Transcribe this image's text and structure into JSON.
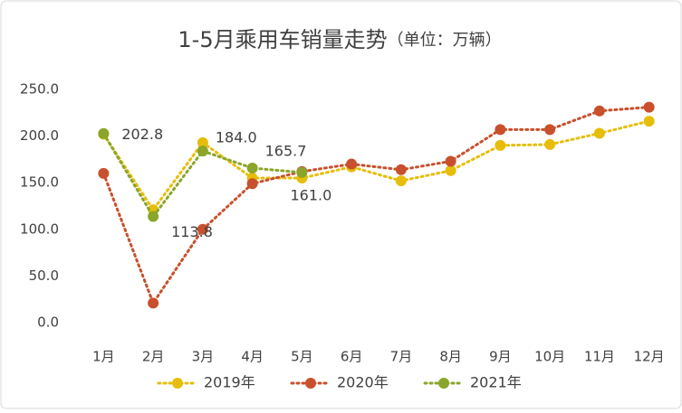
{
  "chart_data": {
    "type": "line",
    "title": "1-5月乘用车销量走势",
    "subtitle": "（单位：万辆）",
    "categories": [
      "1月",
      "2月",
      "3月",
      "4月",
      "5月",
      "6月",
      "7月",
      "8月",
      "9月",
      "10月",
      "11月",
      "12月"
    ],
    "series": [
      {
        "name": "2019年",
        "color": "#e6be0a",
        "values": [
          202,
          121,
          193,
          155,
          155,
          167,
          152,
          163,
          190,
          191,
          203,
          216
        ]
      },
      {
        "name": "2020年",
        "color": "#c8502c",
        "values": [
          160,
          21,
          100,
          149,
          162,
          170,
          164,
          173,
          207,
          207,
          227,
          231
        ]
      },
      {
        "name": "2021年",
        "color": "#8aa52a",
        "values": [
          202.8,
          113.8,
          184.0,
          165.7,
          161.0,
          null,
          null,
          null,
          null,
          null,
          null,
          null
        ],
        "value_labels": [
          "202.8",
          "113.8",
          "184.0",
          "165.7",
          "161.0",
          null,
          null,
          null,
          null,
          null,
          null,
          null
        ]
      }
    ],
    "ylim": [
      0,
      250
    ],
    "yticks": [
      {
        "value": 0,
        "label": "0.0"
      },
      {
        "value": 50,
        "label": "50.0"
      },
      {
        "value": 100,
        "label": "100.0"
      },
      {
        "value": 150,
        "label": "150.0"
      },
      {
        "value": 200,
        "label": "200.0"
      },
      {
        "value": 250,
        "label": "250.0"
      }
    ],
    "grid": false,
    "legend": "bottom"
  }
}
